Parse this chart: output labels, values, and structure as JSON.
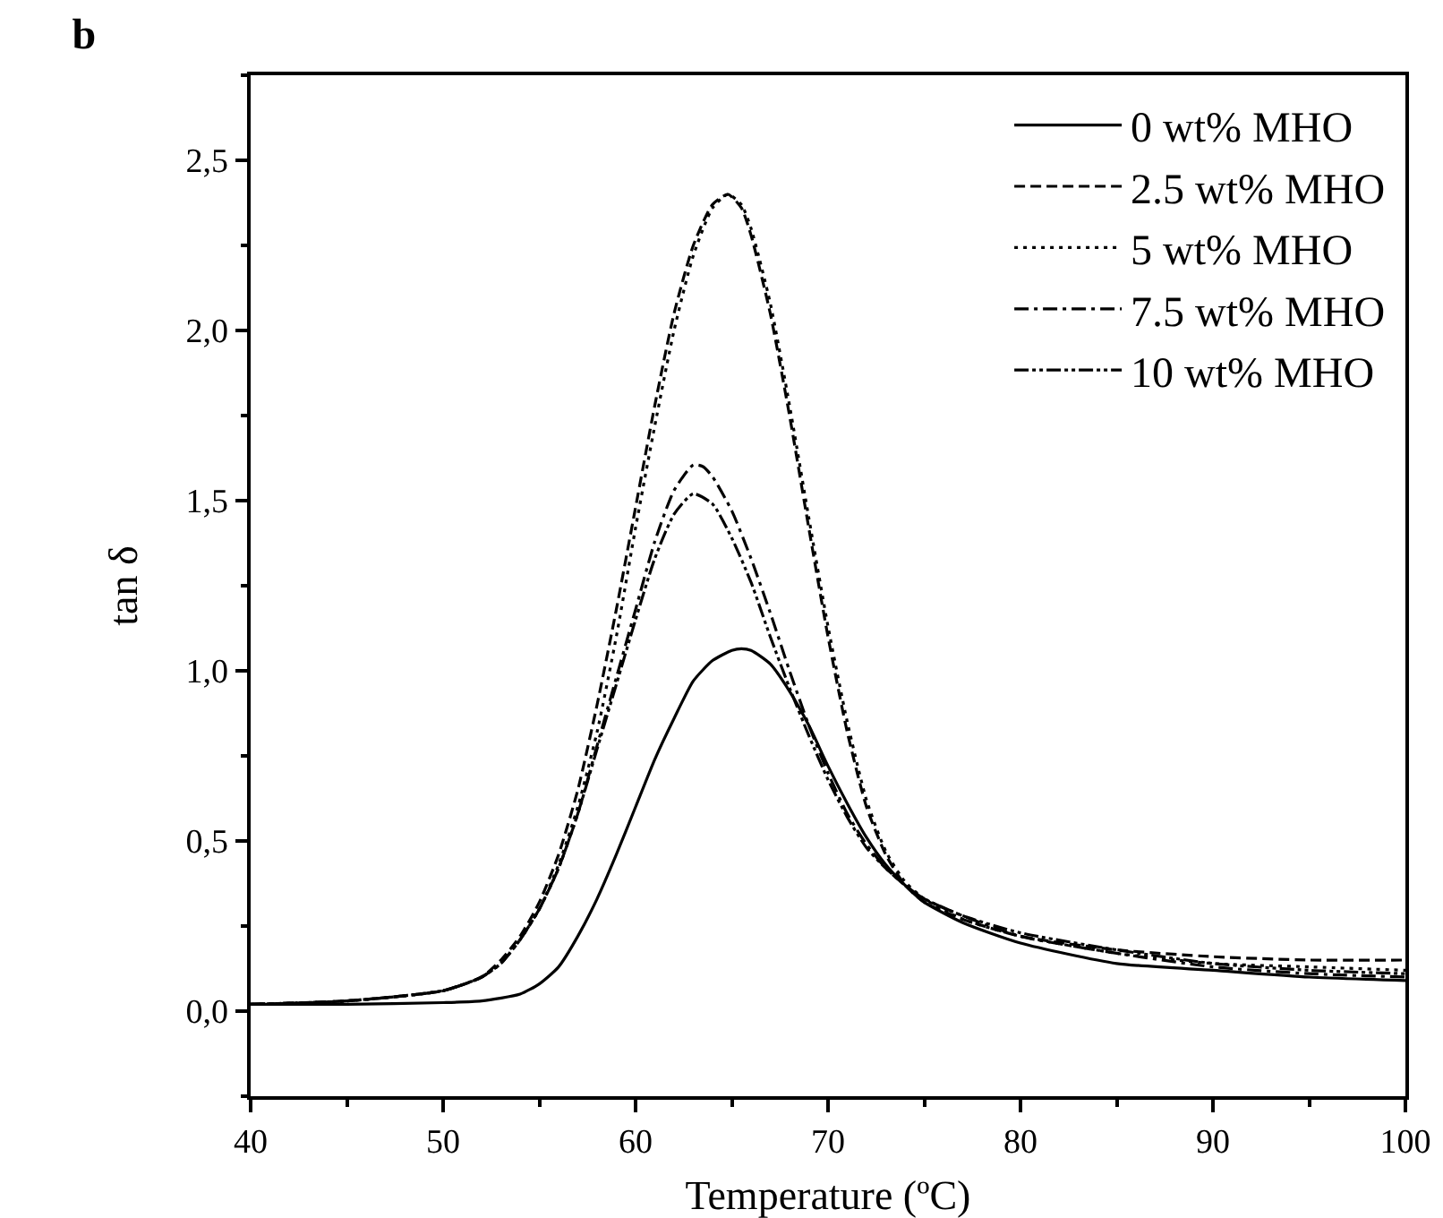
{
  "chart_data": {
    "type": "line",
    "title": "b",
    "xlabel": "Temperature (ºC)",
    "ylabel": "tan δ",
    "xlim": [
      40,
      100
    ],
    "xticks": [
      40,
      50,
      60,
      70,
      80,
      90,
      100
    ],
    "ylim": [
      -0.25,
      2.75
    ],
    "yticks": [
      {
        "value": 0,
        "label": "0,0"
      },
      {
        "value": 0.5,
        "label": "0,5"
      },
      {
        "value": 1,
        "label": "1,0"
      },
      {
        "value": 1.5,
        "label": "1,5"
      },
      {
        "value": 2,
        "label": "2,0"
      },
      {
        "value": 2.5,
        "label": "2,5"
      }
    ],
    "grid": false,
    "legend": "top right",
    "marker": "none",
    "series": [
      {
        "name": "0 wt% MHO",
        "color": "#000000",
        "line_style": "solid",
        "x": [
          40,
          45,
          50,
          52,
          54,
          55,
          56,
          57,
          58,
          59,
          60,
          61,
          62,
          63,
          64,
          65,
          65.5,
          66,
          67,
          68,
          69,
          70,
          71,
          72,
          73,
          74,
          75,
          77,
          80,
          85,
          90,
          95,
          100
        ],
        "values": [
          0.02,
          0.02,
          0.025,
          0.03,
          0.05,
          0.08,
          0.13,
          0.22,
          0.33,
          0.46,
          0.6,
          0.74,
          0.86,
          0.97,
          1.03,
          1.06,
          1.065,
          1.06,
          1.02,
          0.94,
          0.84,
          0.72,
          0.61,
          0.51,
          0.43,
          0.37,
          0.32,
          0.26,
          0.2,
          0.14,
          0.12,
          0.1,
          0.09
        ]
      },
      {
        "name": "2.5 wt% MHO",
        "color": "#000000",
        "line_style": "dashed",
        "x": [
          40,
          45,
          50,
          52,
          53,
          54,
          55,
          56,
          57,
          58,
          59,
          60,
          61,
          62,
          63,
          64,
          64.8,
          65.5,
          66,
          67,
          68,
          69,
          70,
          71,
          72,
          73,
          74,
          75,
          77,
          80,
          85,
          90,
          95,
          100
        ],
        "values": [
          0.02,
          0.03,
          0.06,
          0.1,
          0.15,
          0.22,
          0.32,
          0.46,
          0.65,
          0.9,
          1.18,
          1.48,
          1.78,
          2.05,
          2.25,
          2.37,
          2.4,
          2.36,
          2.28,
          2.05,
          1.75,
          1.42,
          1.1,
          0.82,
          0.6,
          0.46,
          0.37,
          0.32,
          0.27,
          0.22,
          0.18,
          0.16,
          0.15,
          0.15
        ]
      },
      {
        "name": "5 wt% MHO",
        "color": "#000000",
        "line_style": "dotted",
        "x": [
          40,
          45,
          50,
          52,
          53,
          54,
          55,
          56,
          57,
          58,
          59,
          60,
          61,
          62,
          63,
          64,
          64.8,
          65.5,
          66,
          67,
          68,
          69,
          70,
          71,
          72,
          73,
          74,
          75,
          77,
          80,
          85,
          90,
          95,
          100
        ],
        "values": [
          0.02,
          0.03,
          0.06,
          0.1,
          0.14,
          0.21,
          0.3,
          0.43,
          0.6,
          0.82,
          1.1,
          1.42,
          1.72,
          2.0,
          2.22,
          2.36,
          2.4,
          2.37,
          2.3,
          2.08,
          1.78,
          1.45,
          1.13,
          0.85,
          0.62,
          0.47,
          0.38,
          0.33,
          0.27,
          0.22,
          0.17,
          0.14,
          0.13,
          0.12
        ]
      },
      {
        "name": "7.5 wt% MHO",
        "color": "#000000",
        "line_style": "dashdot",
        "x": [
          40,
          45,
          50,
          52,
          53,
          54,
          55,
          56,
          57,
          58,
          59,
          60,
          61,
          62,
          63,
          63.5,
          64,
          65,
          66,
          67,
          68,
          69,
          70,
          71,
          72,
          73,
          74,
          75,
          77,
          80,
          85,
          90,
          95,
          100
        ],
        "values": [
          0.02,
          0.03,
          0.06,
          0.1,
          0.14,
          0.21,
          0.3,
          0.42,
          0.58,
          0.78,
          0.98,
          1.18,
          1.38,
          1.53,
          1.605,
          1.6,
          1.57,
          1.47,
          1.33,
          1.17,
          1.0,
          0.84,
          0.7,
          0.58,
          0.49,
          0.42,
          0.37,
          0.33,
          0.28,
          0.22,
          0.17,
          0.13,
          0.11,
          0.1
        ]
      },
      {
        "name": "10 wt% MHO",
        "color": "#000000",
        "line_style": "dashdotdot",
        "x": [
          40,
          45,
          50,
          52,
          53,
          54,
          55,
          56,
          57,
          58,
          59,
          60,
          61,
          62,
          63,
          64,
          65,
          66,
          67,
          68,
          69,
          70,
          71,
          72,
          73,
          74,
          75,
          77,
          80,
          85,
          90,
          95,
          100
        ],
        "values": [
          0.02,
          0.03,
          0.06,
          0.1,
          0.14,
          0.21,
          0.3,
          0.42,
          0.58,
          0.77,
          0.96,
          1.15,
          1.33,
          1.46,
          1.52,
          1.49,
          1.39,
          1.26,
          1.1,
          0.95,
          0.81,
          0.68,
          0.57,
          0.48,
          0.42,
          0.37,
          0.33,
          0.28,
          0.23,
          0.18,
          0.14,
          0.12,
          0.11
        ]
      }
    ]
  }
}
